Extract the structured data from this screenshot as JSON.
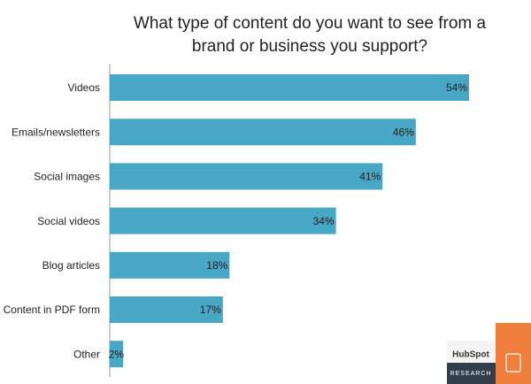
{
  "chart_data": {
    "type": "bar",
    "orientation": "horizontal",
    "title": "What type of content do you want to see from a brand or business you support?",
    "categories": [
      "Videos",
      "Emails/newsletters",
      "Social images",
      "Social videos",
      "Blog articles",
      "Content in PDF form",
      "Other"
    ],
    "values": [
      54,
      46,
      41,
      34,
      18,
      17,
      2
    ],
    "value_labels": [
      "54%",
      "46%",
      "41%",
      "34%",
      "18%",
      "17%",
      "2%"
    ],
    "color": "#47a7c4"
  },
  "branding": {
    "logo": "HubSpot",
    "label": "RESEARCH"
  }
}
